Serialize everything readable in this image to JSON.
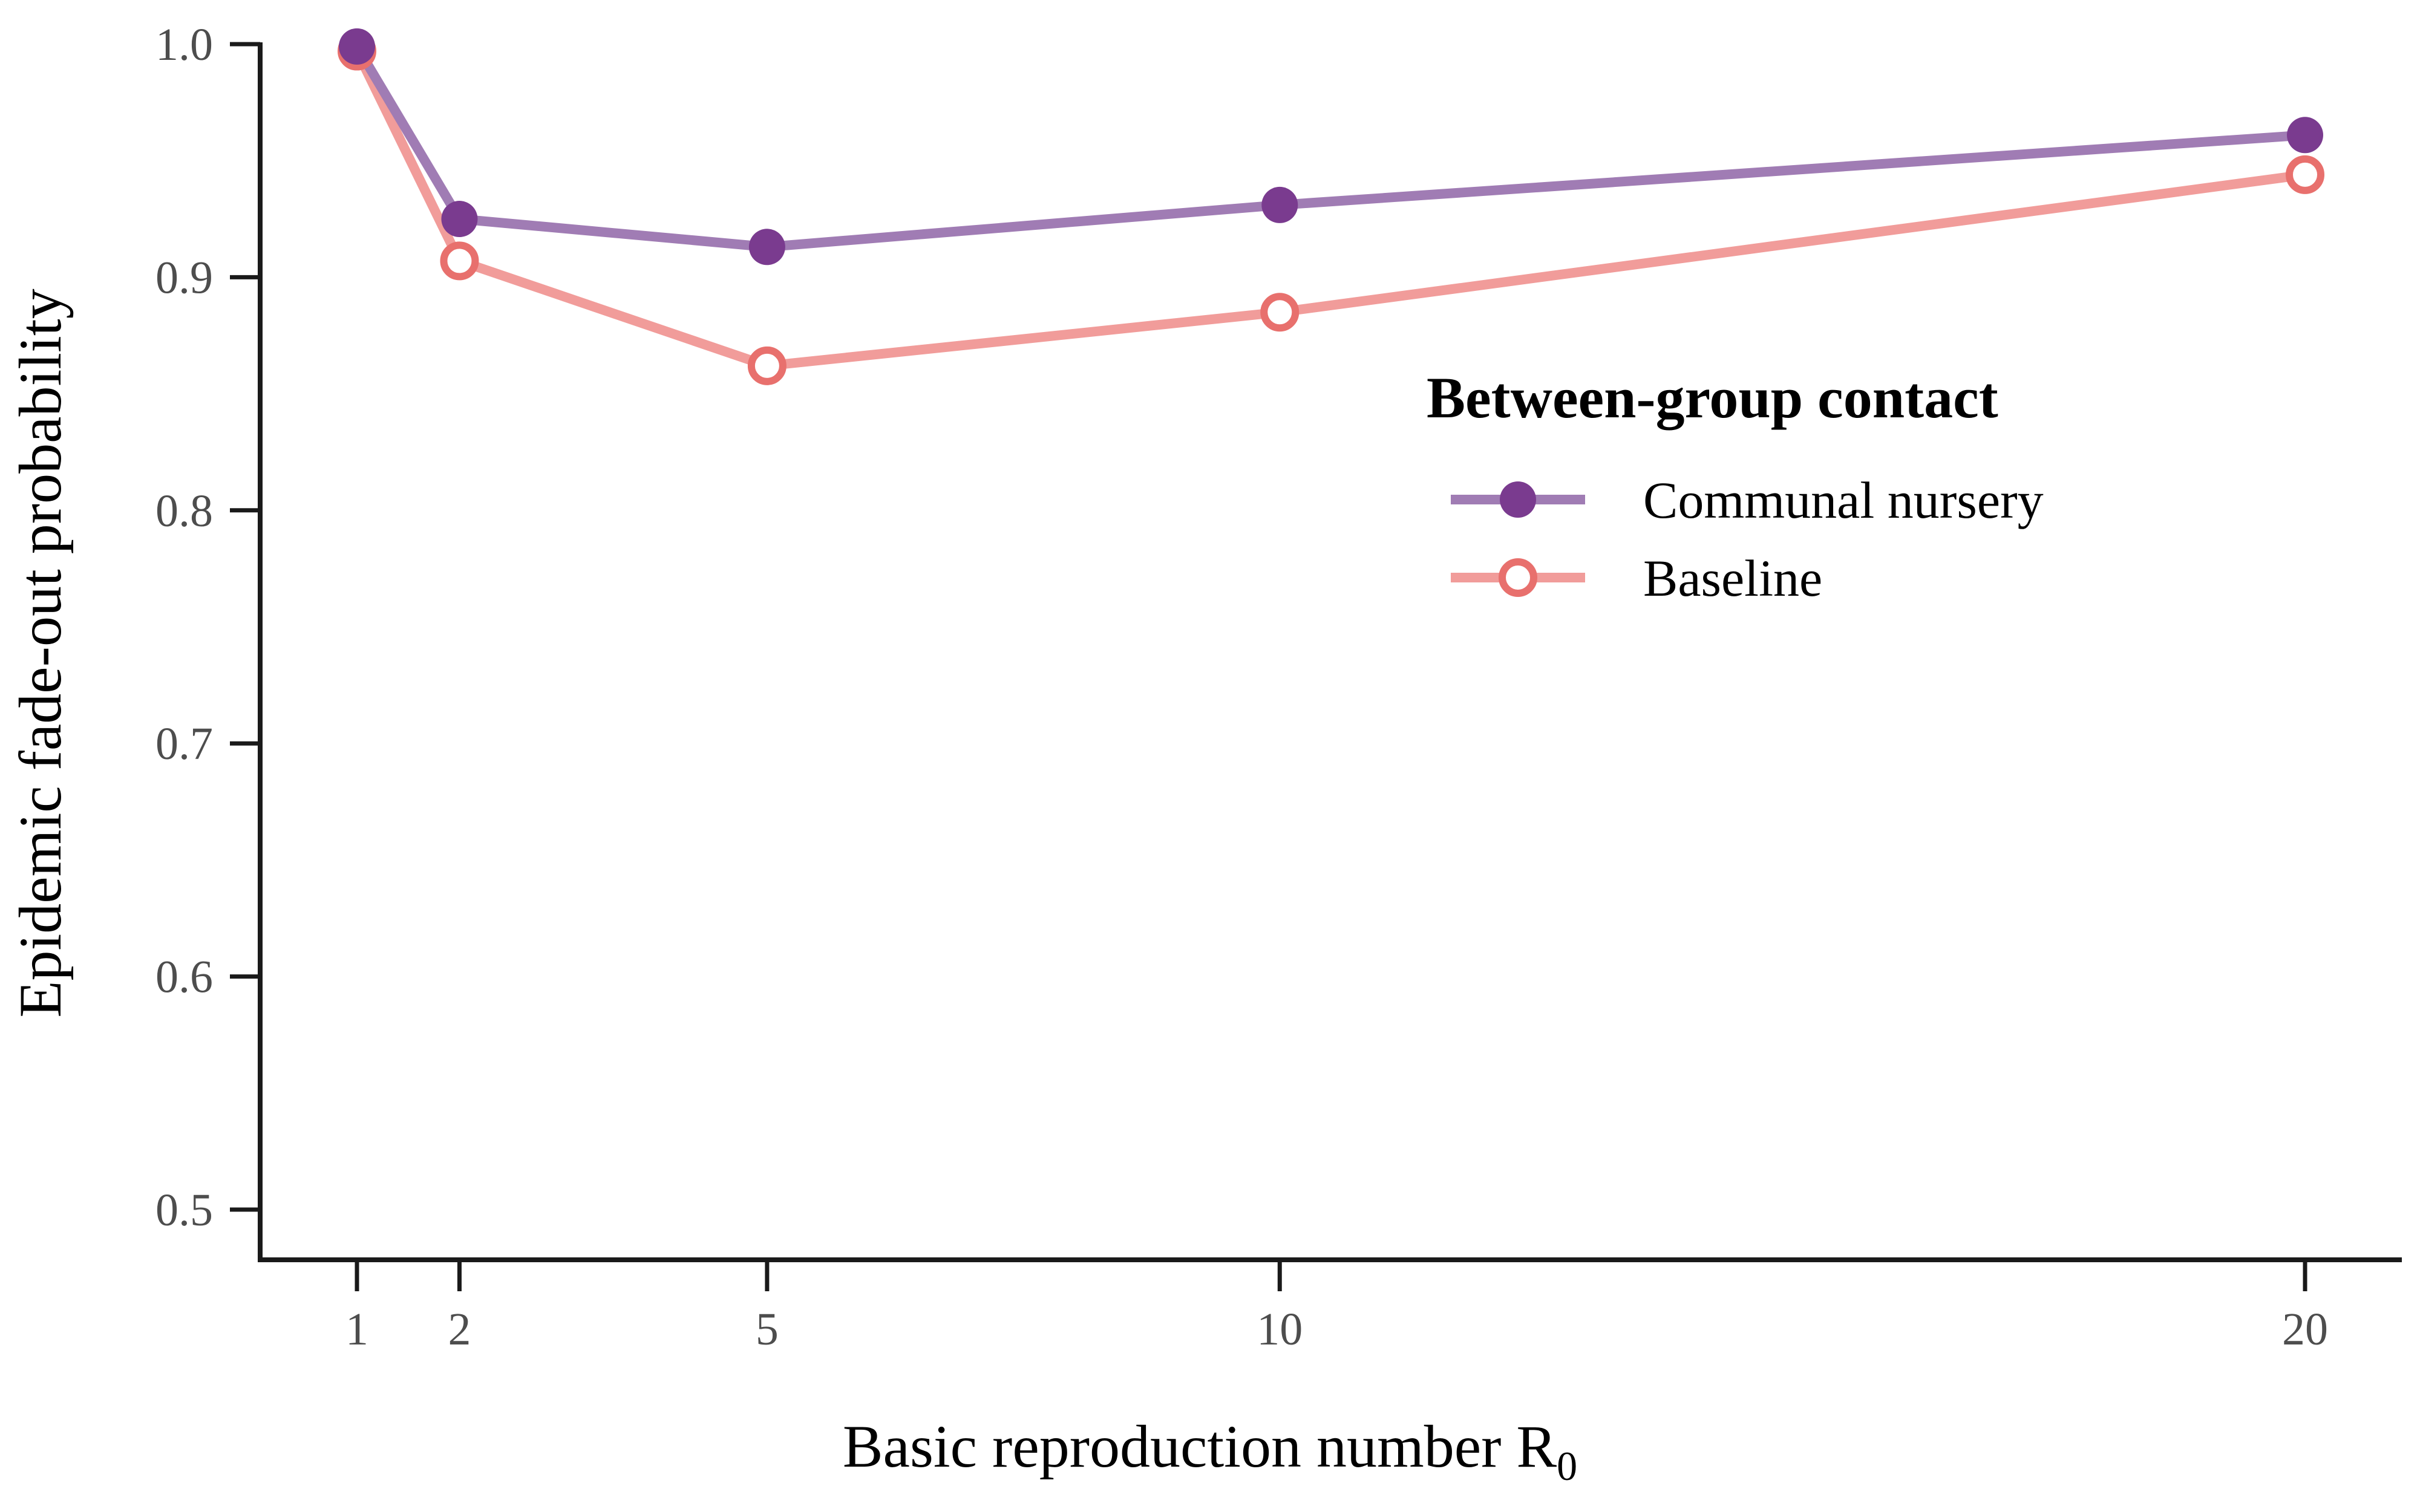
{
  "chart_data": {
    "type": "line",
    "xlabel_main": "Basic reproduction number R",
    "xlabel_sub": "0",
    "ylabel": "Epidemic fade-out probability",
    "x": [
      1,
      2,
      5,
      10,
      20
    ],
    "x_ticks": [
      1,
      2,
      5,
      10,
      20
    ],
    "x_tick_labels": [
      "1",
      "2",
      "5",
      "10",
      "20"
    ],
    "xlim": [
      0.25,
      20.9
    ],
    "y_ticks": [
      0.5,
      0.6,
      0.7,
      0.8,
      0.9,
      1.0
    ],
    "y_tick_labels": [
      "0.5",
      "0.6",
      "0.7",
      "0.8",
      "0.9",
      "1.0"
    ],
    "ylim": [
      0.48,
      1.0
    ],
    "grid": false,
    "legend": {
      "title": "Between-group contact",
      "placement": "right"
    },
    "series": [
      {
        "name": "Communal nursery",
        "values": [
          0.999,
          0.925,
          0.913,
          0.931,
          0.961
        ],
        "line_color": "#a07cb4",
        "marker_color": "#7a3b8f",
        "marker": "filled-circle"
      },
      {
        "name": "Baseline",
        "values": [
          0.997,
          0.907,
          0.862,
          0.885,
          0.944
        ],
        "line_color": "#f19c9a",
        "marker_color": "#e8706d",
        "marker": "open-circle"
      }
    ]
  }
}
